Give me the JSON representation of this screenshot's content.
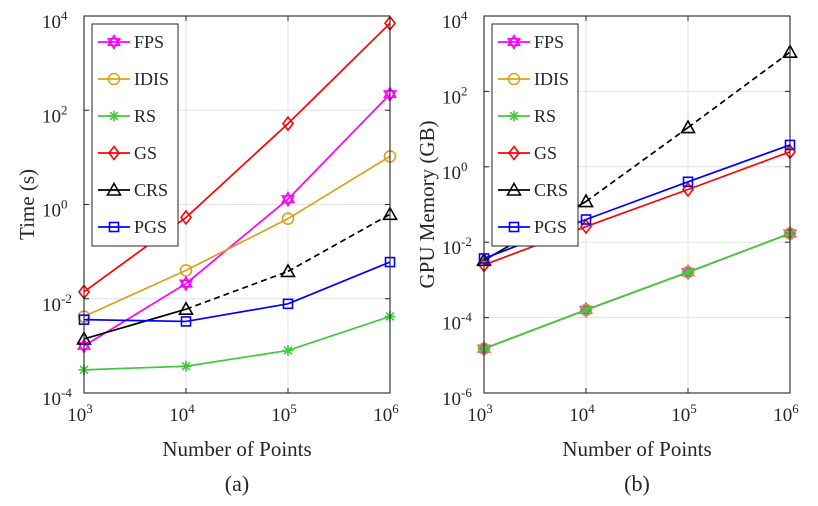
{
  "chart_data": [
    {
      "type": "line",
      "panel_label": "(a)",
      "xlabel": "Number of Points",
      "ylabel": "Time (s)",
      "x_scale": "log",
      "y_scale": "log",
      "xlim": [
        1000,
        1000000
      ],
      "ylim": [
        0.0001,
        10000
      ],
      "x_ticks": [
        {
          "base": "10",
          "exp": "3",
          "value": 1000
        },
        {
          "base": "10",
          "exp": "4",
          "value": 10000
        },
        {
          "base": "10",
          "exp": "5",
          "value": 100000
        },
        {
          "base": "10",
          "exp": "6",
          "value": 1000000
        }
      ],
      "y_ticks": [
        {
          "base": "10",
          "exp": "-4",
          "value": 0.0001
        },
        {
          "base": "10",
          "exp": "-2",
          "value": 0.01
        },
        {
          "base": "10",
          "exp": "0",
          "value": 1
        },
        {
          "base": "10",
          "exp": "2",
          "value": 100
        },
        {
          "base": "10",
          "exp": "4",
          "value": 10000
        }
      ],
      "grid": true,
      "legend_position": "top-left",
      "x": [
        1000,
        10000,
        100000,
        1000000
      ],
      "series": [
        {
          "name": "FPS",
          "color": "#ff00ff",
          "marker": "hexagram",
          "dashed": false,
          "values": [
            0.001,
            0.021,
            1.3,
            220
          ]
        },
        {
          "name": "IDIS",
          "color": "#d9a31a",
          "marker": "circle",
          "dashed": false,
          "values": [
            0.0042,
            0.04,
            0.5,
            10.5
          ]
        },
        {
          "name": "RS",
          "color": "#3ec93e",
          "marker": "asterisk",
          "dashed": false,
          "values": [
            0.00031,
            0.00037,
            0.0008,
            0.0042
          ]
        },
        {
          "name": "GS",
          "color": "#ff0000",
          "marker": "diamond",
          "dashed": false,
          "values": [
            0.014,
            0.53,
            52,
            7000
          ]
        },
        {
          "name": "CRS",
          "color": "#000000",
          "marker": "triangle",
          "dashed": [
            false,
            true,
            true
          ],
          "values": [
            0.0014,
            0.006,
            0.038,
            0.62
          ]
        },
        {
          "name": "PGS",
          "color": "#0000ff",
          "marker": "square",
          "dashed": false,
          "values": [
            0.0036,
            0.0033,
            0.0078,
            0.06
          ]
        }
      ]
    },
    {
      "type": "line",
      "panel_label": "(b)",
      "xlabel": "Number of Points",
      "ylabel": "GPU Memory (GB)",
      "x_scale": "log",
      "y_scale": "log",
      "xlim": [
        1000,
        1000000
      ],
      "ylim": [
        1e-06,
        10000
      ],
      "x_ticks": [
        {
          "base": "10",
          "exp": "3",
          "value": 1000
        },
        {
          "base": "10",
          "exp": "4",
          "value": 10000
        },
        {
          "base": "10",
          "exp": "5",
          "value": 100000
        },
        {
          "base": "10",
          "exp": "6",
          "value": 1000000
        }
      ],
      "y_ticks": [
        {
          "base": "10",
          "exp": "-6",
          "value": 1e-06
        },
        {
          "base": "10",
          "exp": "-4",
          "value": 0.0001
        },
        {
          "base": "10",
          "exp": "-2",
          "value": 0.01
        },
        {
          "base": "10",
          "exp": "0",
          "value": 1
        },
        {
          "base": "10",
          "exp": "2",
          "value": 100
        },
        {
          "base": "10",
          "exp": "4",
          "value": 10000
        }
      ],
      "grid": true,
      "legend_position": "top-left",
      "x": [
        1000,
        10000,
        100000,
        1000000
      ],
      "series": [
        {
          "name": "FPS",
          "color": "#ff00ff",
          "marker": "hexagram",
          "dashed": false,
          "values": [
            1.5e-05,
            0.00016,
            0.0016,
            0.017
          ]
        },
        {
          "name": "IDIS",
          "color": "#d9a31a",
          "marker": "circle",
          "dashed": false,
          "values": [
            1.5e-05,
            0.00016,
            0.0016,
            0.017
          ]
        },
        {
          "name": "RS",
          "color": "#3ec93e",
          "marker": "asterisk",
          "dashed": false,
          "values": [
            1.5e-05,
            0.00016,
            0.0016,
            0.017
          ]
        },
        {
          "name": "GS",
          "color": "#ff0000",
          "marker": "diamond",
          "dashed": false,
          "values": [
            0.0025,
            0.026,
            0.25,
            2.5
          ]
        },
        {
          "name": "CRS",
          "color": "#000000",
          "marker": "triangle",
          "dashed": [
            false,
            true,
            true
          ],
          "values": [
            0.0033,
            0.12,
            11,
            1100
          ]
        },
        {
          "name": "PGS",
          "color": "#0000ff",
          "marker": "square",
          "dashed": false,
          "values": [
            0.0037,
            0.04,
            0.4,
            3.8
          ]
        }
      ]
    }
  ]
}
